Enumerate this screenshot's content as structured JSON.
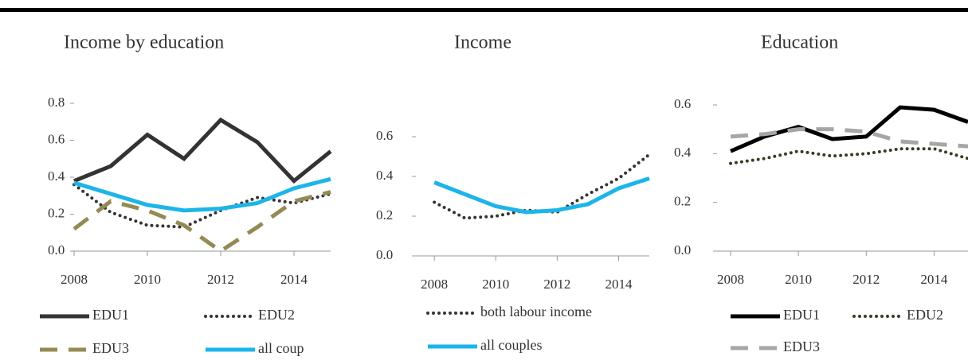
{
  "chart_data": [
    {
      "type": "line",
      "title": "Income by education",
      "x": [
        2008,
        2009,
        2010,
        2011,
        2012,
        2013,
        2014,
        2015
      ],
      "series": [
        {
          "name": "EDU1",
          "color": "#333333",
          "dash": "solid",
          "values": [
            0.38,
            0.46,
            0.63,
            0.5,
            0.71,
            0.59,
            0.38,
            0.54
          ]
        },
        {
          "name": "EDU2",
          "color": "#333333",
          "dash": "dotted",
          "values": [
            0.36,
            0.21,
            0.14,
            0.13,
            0.22,
            0.29,
            0.26,
            0.31
          ]
        },
        {
          "name": "EDU3",
          "color": "#948a54",
          "dash": "dashed",
          "values": [
            0.12,
            0.27,
            0.22,
            0.14,
            0.0,
            0.13,
            0.27,
            0.32
          ]
        },
        {
          "name": "all coup",
          "color": "#1cb5e8",
          "dash": "solid",
          "values": [
            0.37,
            0.31,
            0.25,
            0.22,
            0.23,
            0.26,
            0.34,
            0.39
          ]
        }
      ],
      "xlim": [
        2008,
        2015
      ],
      "xticks": [
        2008,
        2010,
        2012,
        2014
      ],
      "ylim": [
        0,
        0.8
      ],
      "yticks": [
        {
          "value": 0,
          "label": "0.0"
        },
        0.2,
        0.4,
        0.6,
        0.8
      ]
    },
    {
      "type": "line",
      "title": "Income",
      "x": [
        2008,
        2009,
        2010,
        2011,
        2012,
        2013,
        2014,
        2015
      ],
      "series": [
        {
          "name": "both labour income",
          "color": "#333333",
          "dash": "dotted",
          "values": [
            0.27,
            0.19,
            0.2,
            0.23,
            0.22,
            0.31,
            0.39,
            0.51
          ]
        },
        {
          "name": "all couples",
          "color": "#1cb5e8",
          "dash": "solid",
          "values": [
            0.37,
            0.31,
            0.25,
            0.22,
            0.23,
            0.26,
            0.34,
            0.39
          ]
        }
      ],
      "xlim": [
        2007.4,
        2015
      ],
      "xticks": [
        2008,
        2010,
        2012,
        2014
      ],
      "ylim": [
        0,
        0.6
      ],
      "yticks": [
        {
          "value": 0,
          "label": "0.0"
        },
        0.2,
        0.4,
        0.6
      ]
    },
    {
      "type": "line",
      "title": "Education",
      "x": [
        2008,
        2009,
        2010,
        2011,
        2012,
        2013,
        2014,
        2015
      ],
      "series": [
        {
          "name": "EDU1",
          "color": "#000000",
          "dash": "solid",
          "values": [
            0.41,
            0.47,
            0.51,
            0.46,
            0.47,
            0.59,
            0.58,
            0.53
          ]
        },
        {
          "name": "EDU2",
          "color": "#3b3a24",
          "dash": "dotted",
          "values": [
            0.36,
            0.38,
            0.41,
            0.39,
            0.4,
            0.42,
            0.42,
            0.38
          ]
        },
        {
          "name": "EDU3",
          "color": "#a6a6a6",
          "dash": "dashed",
          "values": [
            0.47,
            0.48,
            0.5,
            0.5,
            0.49,
            0.45,
            0.44,
            0.43
          ]
        }
      ],
      "xlim": [
        2007.6,
        2015
      ],
      "xticks": [
        2008,
        2010,
        2012,
        2014
      ],
      "ylim": [
        0,
        0.6
      ],
      "yticks": [
        {
          "value": 0,
          "label": "0.0"
        },
        0.2,
        0.4,
        0.6
      ]
    }
  ]
}
